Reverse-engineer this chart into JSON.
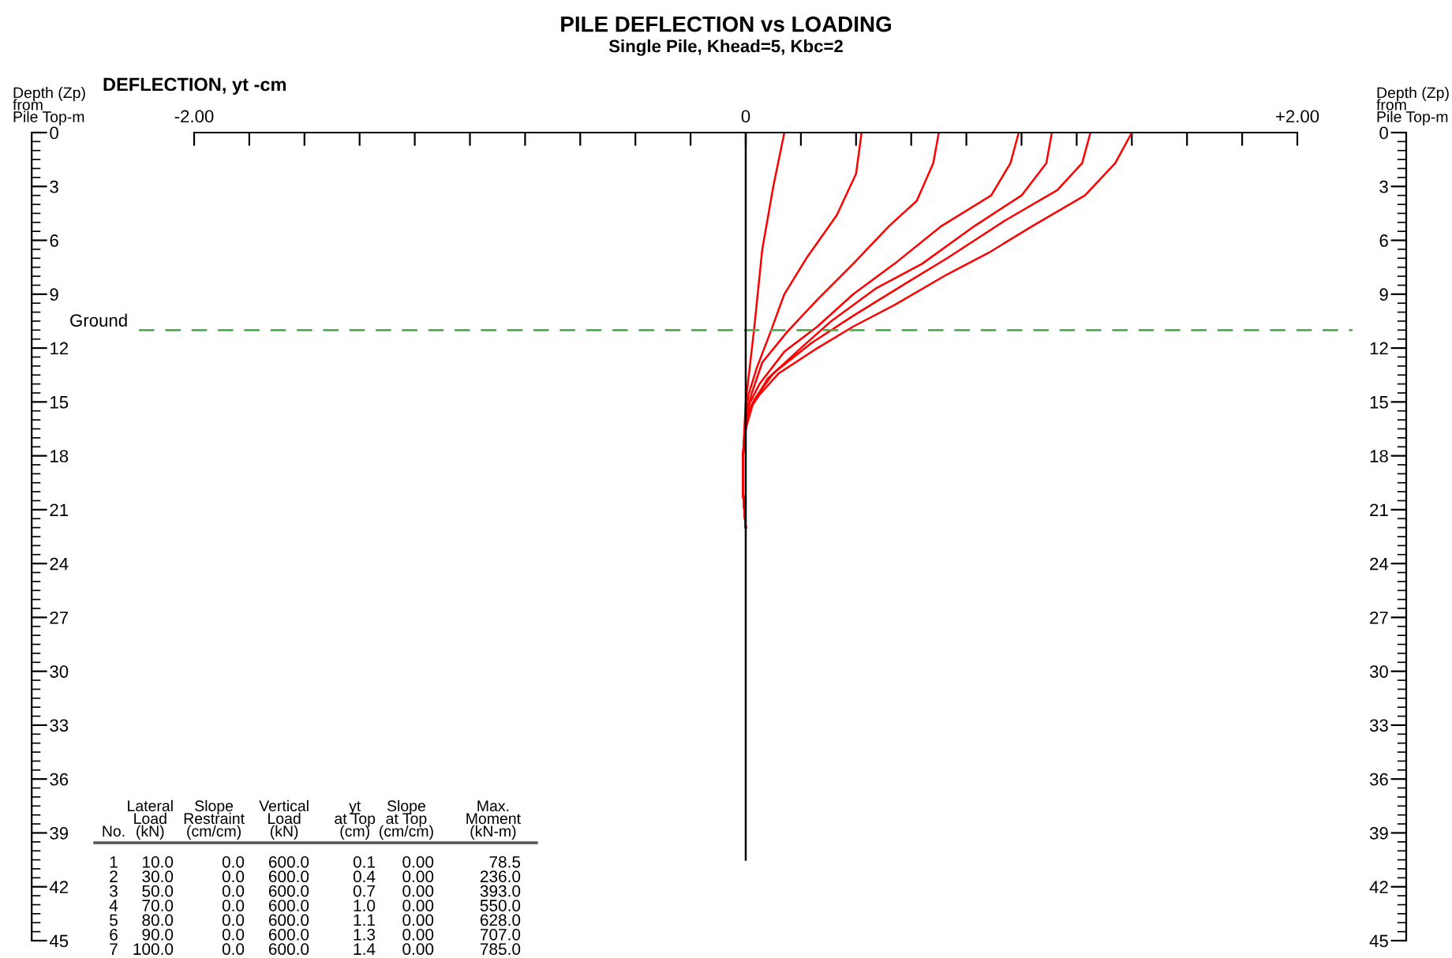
{
  "chart_data": {
    "type": "line",
    "title": "PILE DEFLECTION vs LOADING",
    "subtitle": "Single Pile, Khead=5, Kbc=2",
    "xlabel": "DEFLECTION, yt -cm",
    "ylabel": "Depth (Zp)\nfrom\nPile Top-m",
    "y2label": "Depth (Zp)\nfrom\nPile Top-m",
    "xlim": [
      -2,
      2
    ],
    "xticks": [
      {
        "value": -2,
        "label": "-2.00"
      },
      {
        "value": -1.8,
        "label": null
      },
      {
        "value": -1.6,
        "label": null
      },
      {
        "value": -1.4,
        "label": null
      },
      {
        "value": -1.2,
        "label": null
      },
      {
        "value": -1.0,
        "label": null
      },
      {
        "value": -0.8,
        "label": null
      },
      {
        "value": -0.6,
        "label": null
      },
      {
        "value": -0.4,
        "label": null
      },
      {
        "value": -0.2,
        "label": null
      },
      0,
      {
        "value": 0.2,
        "label": null
      },
      {
        "value": 0.4,
        "label": null
      },
      {
        "value": 0.6,
        "label": null
      },
      {
        "value": 0.8,
        "label": null
      },
      {
        "value": 1.0,
        "label": null
      },
      {
        "value": 1.2,
        "label": null
      },
      {
        "value": 1.4,
        "label": null
      },
      {
        "value": 1.6,
        "label": null
      },
      {
        "value": 1.8,
        "label": null
      },
      {
        "value": 2,
        "label": "+2.00"
      }
    ],
    "ylim": [
      45,
      0
    ],
    "yticks": [
      0,
      3,
      6,
      9,
      12,
      15,
      18,
      21,
      24,
      27,
      30,
      33,
      36,
      39,
      42,
      45
    ],
    "y2lim": [
      45,
      0
    ],
    "y2ticks": [
      0,
      3,
      6,
      9,
      12,
      15,
      18,
      21,
      24,
      27,
      30,
      33,
      36,
      39,
      42,
      45
    ],
    "grid": false,
    "marker": "none",
    "line_style": "solid",
    "series": [
      {
        "color": "#ff0000",
        "x": [
          0.14,
          0.1,
          0.06,
          0.03,
          0.0,
          -0.01,
          -0.01,
          0.0
        ],
        "values": [
          0,
          3,
          6.5,
          11,
          15,
          18,
          20,
          22
        ]
      },
      {
        "color": "#ff0000",
        "x": [
          0.42,
          0.4,
          0.33,
          0.22,
          0.14,
          0.09,
          0.04,
          0.01,
          0.0,
          -0.01,
          -0.01,
          0.0
        ],
        "values": [
          0,
          2.3,
          4.6,
          7.0,
          9.0,
          11.1,
          13.1,
          14.6,
          16,
          18,
          20,
          22
        ]
      },
      {
        "color": "#ff0000",
        "x": [
          0.7,
          0.68,
          0.62,
          0.52,
          0.39,
          0.26,
          0.15,
          0.06,
          0.02,
          0.0,
          -0.01,
          -0.01,
          0.0
        ],
        "values": [
          0,
          1.7,
          3.8,
          5.2,
          7.3,
          9.3,
          11.1,
          12.8,
          14.6,
          16,
          18,
          20,
          22
        ]
      },
      {
        "color": "#ff0000",
        "x": [
          0.99,
          0.96,
          0.89,
          0.71,
          0.54,
          0.39,
          0.26,
          0.14,
          0.05,
          0.01,
          0.0,
          -0.01,
          -0.01,
          0.0
        ],
        "values": [
          0,
          1.7,
          3.5,
          5.2,
          7.3,
          9.0,
          10.8,
          12.2,
          14.0,
          15.2,
          16.5,
          18,
          20,
          22
        ]
      },
      {
        "color": "#ff0000",
        "x": [
          1.11,
          1.09,
          1.0,
          0.83,
          0.64,
          0.47,
          0.31,
          0.2,
          0.08,
          0.02,
          0.0,
          -0.01,
          -0.01,
          0.0
        ],
        "values": [
          0,
          1.7,
          3.5,
          5.2,
          7.3,
          8.7,
          10.5,
          12.0,
          13.7,
          15.2,
          16.5,
          18,
          20,
          22
        ]
      },
      {
        "color": "#ff0000",
        "x": [
          1.25,
          1.22,
          1.13,
          0.94,
          0.73,
          0.58,
          0.39,
          0.24,
          0.1,
          0.03,
          0.0,
          -0.01,
          -0.01,
          0.0
        ],
        "values": [
          0,
          1.7,
          3.2,
          4.9,
          7.0,
          8.4,
          10.2,
          11.7,
          13.4,
          14.9,
          16.5,
          18,
          20,
          22
        ]
      },
      {
        "color": "#ff0000",
        "x": [
          1.4,
          1.34,
          1.23,
          1.04,
          0.88,
          0.73,
          0.54,
          0.39,
          0.26,
          0.12,
          0.05,
          0.01,
          0.0,
          -0.01,
          -0.01,
          0.0
        ],
        "values": [
          0,
          1.7,
          3.5,
          5.2,
          6.7,
          7.9,
          9.6,
          10.8,
          12.0,
          13.4,
          14.6,
          15.5,
          16.5,
          18,
          20,
          22
        ]
      }
    ],
    "ref_lines": [
      {
        "axis": "y",
        "value": 11,
        "label": "Ground",
        "color": "#4caf50",
        "line_style": "dashed"
      },
      {
        "axis": "x",
        "value": 0,
        "label": null,
        "color": "#000000",
        "line_style": "solid"
      }
    ],
    "annotations": [
      "No.",
      "Lateral\nLoad\n(kN)",
      "Slope\nRestraint\n(cm/cm)",
      "Vertical\nLoad\n(kN)",
      "yt\nat Top\n(cm)",
      "Slope\nat Top\n(cm/cm)",
      "Max.\nMoment\n(kN-m)",
      "1",
      "10.0",
      "0.0",
      "600.0",
      "0.1",
      "0.00",
      "78.5",
      "2",
      "30.0",
      "0.0",
      "600.0",
      "0.4",
      "0.00",
      "236.0",
      "3",
      "50.0",
      "0.0",
      "600.0",
      "0.7",
      "0.00",
      "393.0",
      "4",
      "70.0",
      "0.0",
      "600.0",
      "1.0",
      "0.00",
      "550.0",
      "5",
      "80.0",
      "0.0",
      "600.0",
      "1.1",
      "0.00",
      "628.0",
      "6",
      "90.0",
      "0.0",
      "600.0",
      "1.3",
      "0.00",
      "707.0",
      "7",
      "100.0",
      "0.0",
      "600.0",
      "1.4",
      "0.00",
      "785.0"
    ]
  }
}
